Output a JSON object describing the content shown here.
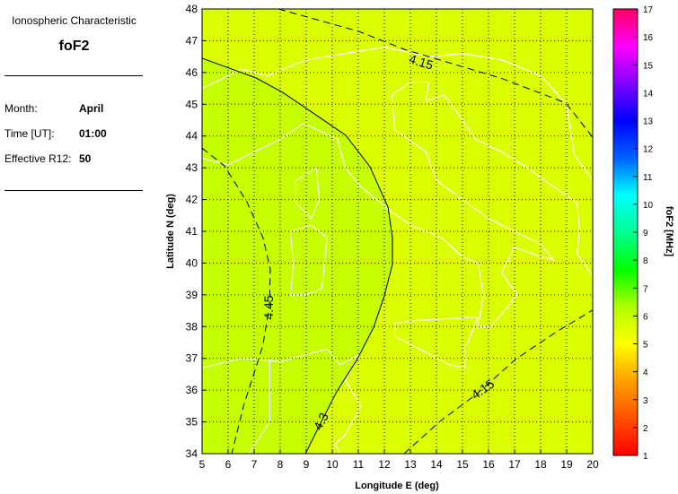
{
  "info": {
    "characteristic_label": "Ionospheric Characteristic",
    "parameter": "foF2",
    "month_label": "Month:",
    "month_value": "April",
    "time_label": "Time [UT]:",
    "time_value": "01:00",
    "r12_label": "Effective R12:",
    "r12_value": "50"
  },
  "chart_data": {
    "type": "contour-map",
    "xlabel": "Longitude E (deg)",
    "ylabel": "Latitude N (deg)",
    "xlim": [
      5,
      20
    ],
    "ylim": [
      34,
      48
    ],
    "x_ticks": [
      "5",
      "6",
      "7",
      "8",
      "9",
      "10",
      "11",
      "12",
      "13",
      "14",
      "15",
      "16",
      "17",
      "18",
      "19",
      "20"
    ],
    "y_ticks": [
      "34",
      "35",
      "36",
      "37",
      "38",
      "39",
      "40",
      "41",
      "42",
      "43",
      "44",
      "45",
      "46",
      "47",
      "48"
    ],
    "grid": true,
    "colorbar": {
      "label": "foF2 [MHz]",
      "range": [
        1,
        17
      ],
      "ticks": [
        "1",
        "2",
        "3",
        "4",
        "5",
        "6",
        "7",
        "8",
        "9",
        "10",
        "11",
        "12",
        "13",
        "14",
        "15",
        "16",
        "17"
      ],
      "colors": [
        "#ff0000",
        "#ff5000",
        "#ffa000",
        "#ffff00",
        "#b0ff00",
        "#00ff00",
        "#00ff90",
        "#00ffff",
        "#0060ff",
        "#0000ff",
        "#8000ff",
        "#ff00ff",
        "#ff0060"
      ]
    },
    "fill_colors": {
      "above_4_3": "#c6ff00",
      "below_4_3": "#dcff00"
    },
    "contours": [
      {
        "level": "4.3",
        "style": "solid",
        "points": [
          [
            5,
            46.45
          ],
          [
            7.07,
            45.83
          ],
          [
            8.1,
            45.37
          ],
          [
            9.31,
            44.7
          ],
          [
            10.52,
            44.02
          ],
          [
            11.45,
            43.03
          ],
          [
            12.14,
            41.76
          ],
          [
            12.31,
            40.8
          ],
          [
            12.31,
            39.96
          ],
          [
            12.0,
            38.97
          ],
          [
            11.59,
            37.98
          ],
          [
            10.97,
            36.99
          ],
          [
            10.17,
            35.95
          ],
          [
            9.59,
            35.02
          ],
          [
            8.97,
            34.0
          ]
        ],
        "label_at": [
          9.6,
          35.0
        ],
        "label_angle": -63
      },
      {
        "level": "4.45",
        "style": "dashed",
        "points": [
          [
            5,
            43.62
          ],
          [
            5.86,
            43.06
          ],
          [
            6.72,
            41.93
          ],
          [
            7.34,
            40.8
          ],
          [
            7.62,
            39.81
          ],
          [
            7.59,
            38.69
          ],
          [
            7.34,
            37.42
          ],
          [
            7.07,
            36.71
          ],
          [
            6.62,
            35.58
          ],
          [
            6.14,
            34.0
          ]
        ],
        "label_at": [
          7.6,
          38.6
        ],
        "label_angle": -90
      },
      {
        "level": "4.15",
        "style": "dashed",
        "points": [
          [
            7.93,
            48.0
          ],
          [
            11.03,
            47.29
          ],
          [
            12.76,
            46.73
          ],
          [
            14.48,
            46.31
          ],
          [
            16.55,
            45.8
          ],
          [
            18.97,
            45.04
          ],
          [
            20,
            43.96
          ]
        ],
        "label_at": [
          13.4,
          46.3
        ],
        "label_angle": 17
      },
      {
        "level": "4.15",
        "style": "dashed",
        "points": [
          [
            12.76,
            34
          ],
          [
            14.14,
            35.02
          ],
          [
            15.52,
            35.86
          ],
          [
            17.07,
            36.99
          ],
          [
            18.62,
            37.84
          ],
          [
            20,
            38.52
          ]
        ],
        "label_at": [
          15.8,
          36.0
        ],
        "label_angle": -35
      }
    ]
  }
}
